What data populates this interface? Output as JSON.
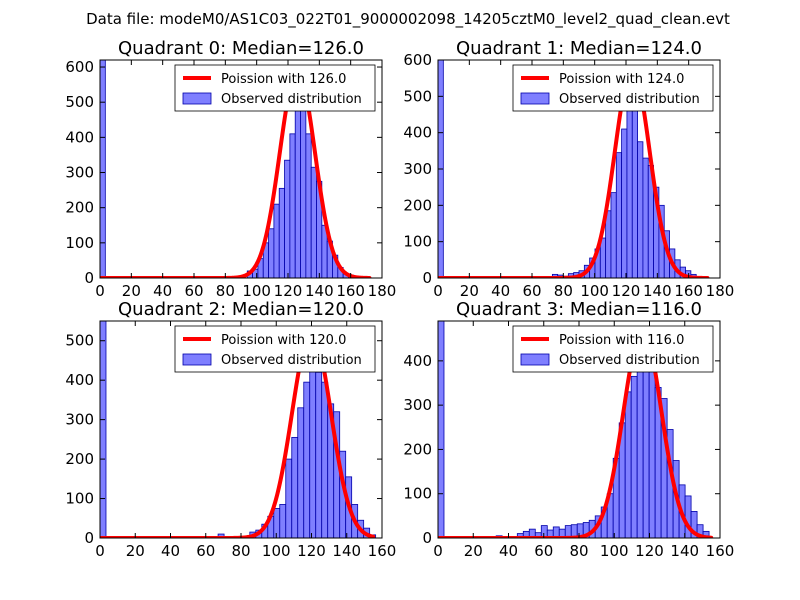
{
  "figure": {
    "suptitle": "Data file: modeM0/AS1C03_022T01_9000002098_14205cztM0_level2_quad_clean.evt"
  },
  "colors": {
    "bar_fill": "#7f7fff",
    "bar_edge": "#0000aa",
    "curve": "#ff0000"
  },
  "chart_data": [
    {
      "type": "bar",
      "title": "Quadrant 0: Median=126.0",
      "xlim": [
        0,
        180
      ],
      "ylim": [
        0,
        620
      ],
      "xticks": [
        0,
        20,
        40,
        60,
        80,
        100,
        120,
        140,
        160,
        180
      ],
      "yticks": [
        0,
        100,
        200,
        300,
        400,
        500,
        600
      ],
      "bin_width": 3.4,
      "legend": [
        "Poission with 126.0",
        "Observed distribution"
      ],
      "bins": [
        {
          "x": 0,
          "v": 620
        },
        {
          "x": 94,
          "v": 20
        },
        {
          "x": 97.4,
          "v": 25
        },
        {
          "x": 100.8,
          "v": 55
        },
        {
          "x": 104.2,
          "v": 100
        },
        {
          "x": 107.6,
          "v": 140
        },
        {
          "x": 111,
          "v": 210
        },
        {
          "x": 114.4,
          "v": 255
        },
        {
          "x": 117.8,
          "v": 335
        },
        {
          "x": 121.2,
          "v": 410
        },
        {
          "x": 124.6,
          "v": 590
        },
        {
          "x": 128,
          "v": 515
        },
        {
          "x": 131.4,
          "v": 410
        },
        {
          "x": 134.8,
          "v": 315
        },
        {
          "x": 138.2,
          "v": 275
        },
        {
          "x": 141.6,
          "v": 150
        },
        {
          "x": 145,
          "v": 105
        },
        {
          "x": 148.4,
          "v": 65
        },
        {
          "x": 151.8,
          "v": 30
        },
        {
          "x": 155.2,
          "v": 12
        },
        {
          "x": 158.6,
          "v": 8
        }
      ],
      "curve": {
        "mean": 126.0,
        "peak": 590,
        "sigma": 11.2,
        "xmin": 0,
        "xmax": 172
      }
    },
    {
      "type": "bar",
      "title": "Quadrant 1: Median=124.0",
      "xlim": [
        0,
        180
      ],
      "ylim": [
        0,
        600
      ],
      "xticks": [
        0,
        20,
        40,
        60,
        80,
        100,
        120,
        140,
        160,
        180
      ],
      "yticks": [
        0,
        100,
        200,
        300,
        400,
        500,
        600
      ],
      "bin_width": 3.4,
      "legend": [
        "Poission with 124.0",
        "Observed distribution"
      ],
      "bins": [
        {
          "x": 0,
          "v": 600
        },
        {
          "x": 73,
          "v": 10
        },
        {
          "x": 76.4,
          "v": 8
        },
        {
          "x": 79.8,
          "v": 5
        },
        {
          "x": 83.2,
          "v": 12
        },
        {
          "x": 86.6,
          "v": 15
        },
        {
          "x": 90,
          "v": 20
        },
        {
          "x": 93.4,
          "v": 35
        },
        {
          "x": 96.8,
          "v": 55
        },
        {
          "x": 100.2,
          "v": 80
        },
        {
          "x": 103.6,
          "v": 110
        },
        {
          "x": 107,
          "v": 185
        },
        {
          "x": 110.4,
          "v": 235
        },
        {
          "x": 113.8,
          "v": 345
        },
        {
          "x": 117.2,
          "v": 410
        },
        {
          "x": 120.6,
          "v": 555
        },
        {
          "x": 124,
          "v": 515
        },
        {
          "x": 127.4,
          "v": 375
        },
        {
          "x": 130.8,
          "v": 330
        },
        {
          "x": 134.2,
          "v": 310
        },
        {
          "x": 137.6,
          "v": 250
        },
        {
          "x": 141,
          "v": 200
        },
        {
          "x": 144.4,
          "v": 130
        },
        {
          "x": 147.8,
          "v": 80
        },
        {
          "x": 151.2,
          "v": 50
        },
        {
          "x": 154.6,
          "v": 30
        },
        {
          "x": 158,
          "v": 20
        },
        {
          "x": 161.4,
          "v": 10
        }
      ],
      "curve": {
        "mean": 124.0,
        "peak": 575,
        "sigma": 11.1,
        "xmin": 0,
        "xmax": 172
      }
    },
    {
      "type": "bar",
      "title": "Quadrant 2: Median=120.0",
      "xlim": [
        0,
        160
      ],
      "ylim": [
        0,
        550
      ],
      "xticks": [
        0,
        20,
        40,
        60,
        80,
        100,
        120,
        140,
        160
      ],
      "yticks": [
        0,
        100,
        200,
        300,
        400,
        500
      ],
      "bin_width": 3.4,
      "legend": [
        "Poission with 120.0",
        "Observed distribution"
      ],
      "bins": [
        {
          "x": 0,
          "v": 550
        },
        {
          "x": 67,
          "v": 10
        },
        {
          "x": 85,
          "v": 15
        },
        {
          "x": 88.4,
          "v": 20
        },
        {
          "x": 91.8,
          "v": 35
        },
        {
          "x": 95.2,
          "v": 55
        },
        {
          "x": 98.6,
          "v": 75
        },
        {
          "x": 102,
          "v": 85
        },
        {
          "x": 105.4,
          "v": 200
        },
        {
          "x": 108.8,
          "v": 255
        },
        {
          "x": 112.2,
          "v": 330
        },
        {
          "x": 115.6,
          "v": 395
        },
        {
          "x": 119,
          "v": 445
        },
        {
          "x": 122.4,
          "v": 420
        },
        {
          "x": 125.8,
          "v": 395
        },
        {
          "x": 129.2,
          "v": 340
        },
        {
          "x": 132.6,
          "v": 320
        },
        {
          "x": 136,
          "v": 220
        },
        {
          "x": 139.4,
          "v": 155
        },
        {
          "x": 142.8,
          "v": 85
        },
        {
          "x": 146.2,
          "v": 45
        },
        {
          "x": 149.6,
          "v": 25
        },
        {
          "x": 153,
          "v": 8
        }
      ],
      "curve": {
        "mean": 120.0,
        "peak": 525,
        "sigma": 11.0,
        "xmin": 0,
        "xmax": 155
      }
    },
    {
      "type": "bar",
      "title": "Quadrant 3: Median=116.0",
      "xlim": [
        0,
        160
      ],
      "ylim": [
        0,
        490
      ],
      "xticks": [
        0,
        20,
        40,
        60,
        80,
        100,
        120,
        140,
        160
      ],
      "yticks": [
        0,
        100,
        200,
        300,
        400
      ],
      "bin_width": 3.4,
      "legend": [
        "Poission with 116.0",
        "Observed distribution"
      ],
      "bins": [
        {
          "x": 0,
          "v": 490
        },
        {
          "x": 33,
          "v": 5
        },
        {
          "x": 45,
          "v": 10
        },
        {
          "x": 48.4,
          "v": 15
        },
        {
          "x": 51.8,
          "v": 20
        },
        {
          "x": 55.2,
          "v": 12
        },
        {
          "x": 58.6,
          "v": 28
        },
        {
          "x": 62,
          "v": 18
        },
        {
          "x": 65.4,
          "v": 25
        },
        {
          "x": 68.8,
          "v": 20
        },
        {
          "x": 72.2,
          "v": 28
        },
        {
          "x": 75.6,
          "v": 30
        },
        {
          "x": 79,
          "v": 32
        },
        {
          "x": 82.4,
          "v": 35
        },
        {
          "x": 85.8,
          "v": 40
        },
        {
          "x": 89.2,
          "v": 50
        },
        {
          "x": 92.6,
          "v": 70
        },
        {
          "x": 96,
          "v": 100
        },
        {
          "x": 99.4,
          "v": 180
        },
        {
          "x": 102.8,
          "v": 260
        },
        {
          "x": 106.2,
          "v": 330
        },
        {
          "x": 109.6,
          "v": 365
        },
        {
          "x": 113,
          "v": 470
        },
        {
          "x": 116.4,
          "v": 395
        },
        {
          "x": 119.8,
          "v": 380
        },
        {
          "x": 123.2,
          "v": 340
        },
        {
          "x": 126.6,
          "v": 315
        },
        {
          "x": 130,
          "v": 245
        },
        {
          "x": 133.4,
          "v": 175
        },
        {
          "x": 136.8,
          "v": 120
        },
        {
          "x": 140.2,
          "v": 95
        },
        {
          "x": 143.6,
          "v": 60
        },
        {
          "x": 147,
          "v": 30
        },
        {
          "x": 150.4,
          "v": 15
        }
      ],
      "curve": {
        "mean": 116.0,
        "peak": 470,
        "sigma": 10.8,
        "xmin": 0,
        "xmax": 155
      }
    }
  ]
}
